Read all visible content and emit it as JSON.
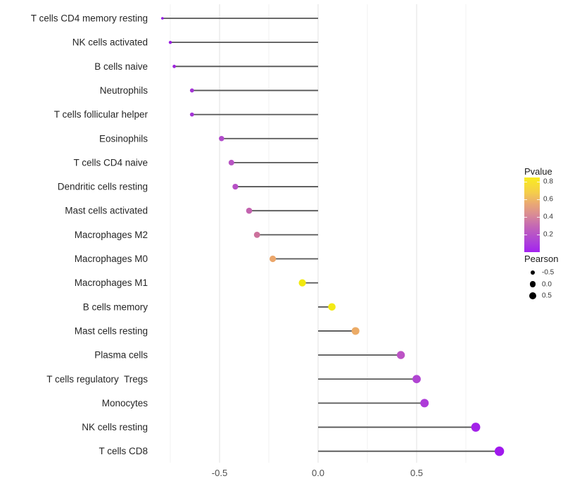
{
  "chart_data": {
    "type": "scatter",
    "subtype": "lollipop",
    "title": "",
    "xlabel": "",
    "ylabel": "",
    "x_tick_labels": [
      "-0.5",
      "0.0",
      "0.5"
    ],
    "x_ticks": [
      -0.5,
      0.0,
      0.5
    ],
    "grid_major": [
      -0.5,
      0.0,
      0.5
    ],
    "grid_minor": [
      -0.75,
      -0.25,
      0.25,
      0.75
    ],
    "xlim": [
      -0.88,
      1.0
    ],
    "legend_position": "right",
    "encoding": {
      "x": "Pearson correlation",
      "color": "Pvalue",
      "size": "Pearson"
    },
    "points": [
      {
        "label": "T cells CD4 memory resting",
        "pearson": -0.79,
        "pvalue": 0.03,
        "color": "#9315E5",
        "dot_radius_px": 1.8
      },
      {
        "label": "NK cells activated",
        "pearson": -0.75,
        "pvalue": 0.05,
        "color": "#991CE1",
        "dot_radius_px": 2.2
      },
      {
        "label": "B cells naive",
        "pearson": -0.73,
        "pvalue": 0.07,
        "color": "#9E24DD",
        "dot_radius_px": 2.4
      },
      {
        "label": "Neutrophils",
        "pearson": -0.64,
        "pvalue": 0.12,
        "color": "#A435D6",
        "dot_radius_px": 2.9
      },
      {
        "label": "T cells follicular helper",
        "pearson": -0.64,
        "pvalue": 0.12,
        "color": "#A435D6",
        "dot_radius_px": 2.9
      },
      {
        "label": "Eosinophils",
        "pearson": -0.49,
        "pvalue": 0.22,
        "color": "#B14BCB",
        "dot_radius_px": 3.8
      },
      {
        "label": "T cells CD4 naive",
        "pearson": -0.44,
        "pvalue": 0.27,
        "color": "#B854C3",
        "dot_radius_px": 4.0
      },
      {
        "label": "Dendritic cells resting",
        "pearson": -0.42,
        "pvalue": 0.26,
        "color": "#B750C6",
        "dot_radius_px": 4.1
      },
      {
        "label": "Mast cells activated",
        "pearson": -0.35,
        "pvalue": 0.38,
        "color": "#C363AF",
        "dot_radius_px": 4.3
      },
      {
        "label": "Macrophages M2",
        "pearson": -0.31,
        "pvalue": 0.44,
        "color": "#CC719C",
        "dot_radius_px": 4.4
      },
      {
        "label": "Macrophages M0",
        "pearson": -0.23,
        "pvalue": 0.61,
        "color": "#EBA66B",
        "dot_radius_px": 4.6
      },
      {
        "label": "Macrophages M1",
        "pearson": -0.08,
        "pvalue": 0.82,
        "color": "#F2E90E",
        "dot_radius_px": 5.1
      },
      {
        "label": "B cells memory",
        "pearson": 0.07,
        "pvalue": 0.83,
        "color": "#F3EA16",
        "dot_radius_px": 5.3
      },
      {
        "label": "Mast cells resting",
        "pearson": 0.19,
        "pvalue": 0.61,
        "color": "#ECAB66",
        "dot_radius_px": 5.5
      },
      {
        "label": "Plasma cells",
        "pearson": 0.42,
        "pvalue": 0.28,
        "color": "#BC53C5",
        "dot_radius_px": 5.7
      },
      {
        "label": "T cells regulatory  Tregs",
        "pearson": 0.5,
        "pvalue": 0.2,
        "color": "#B044D2",
        "dot_radius_px": 5.9
      },
      {
        "label": "Monocytes",
        "pearson": 0.54,
        "pvalue": 0.17,
        "color": "#AD3BD8",
        "dot_radius_px": 6.0
      },
      {
        "label": "NK cells resting",
        "pearson": 0.8,
        "pvalue": 0.06,
        "color": "#A322E9",
        "dot_radius_px": 6.4
      },
      {
        "label": "T cells CD8",
        "pearson": 0.92,
        "pvalue": 0.04,
        "color": "#A019ED",
        "dot_radius_px": 6.7
      }
    ]
  },
  "legend": {
    "pvalue": {
      "title": "Pvalue",
      "tick_labels": [
        "0.8",
        "0.6",
        "0.4",
        "0.2"
      ],
      "range": [
        0,
        0.85
      ],
      "gradient": [
        {
          "o": 0.0,
          "c": "#A322F0"
        },
        {
          "o": 0.18,
          "c": "#B149D2"
        },
        {
          "o": 0.35,
          "c": "#C468B4"
        },
        {
          "o": 0.5,
          "c": "#D98B95"
        },
        {
          "o": 0.65,
          "c": "#EAA973"
        },
        {
          "o": 0.8,
          "c": "#F5CE4A"
        },
        {
          "o": 1.0,
          "c": "#F9EC1F"
        }
      ]
    },
    "pearson": {
      "title": "Pearson",
      "items": [
        {
          "label": "-0.5",
          "radius": 3.4
        },
        {
          "label": "0.0",
          "radius": 4.4
        },
        {
          "label": "0.5",
          "radius": 5.2
        }
      ]
    }
  },
  "style": {
    "background": "#FFFFFF",
    "stick_color": "#555555",
    "grid_major_color": "#E2E2E2",
    "grid_minor_color": "#F0F0F0",
    "axis_text_color": "#4D4D4D",
    "label_color": "#262626",
    "legend_dot_color": "#000000"
  }
}
